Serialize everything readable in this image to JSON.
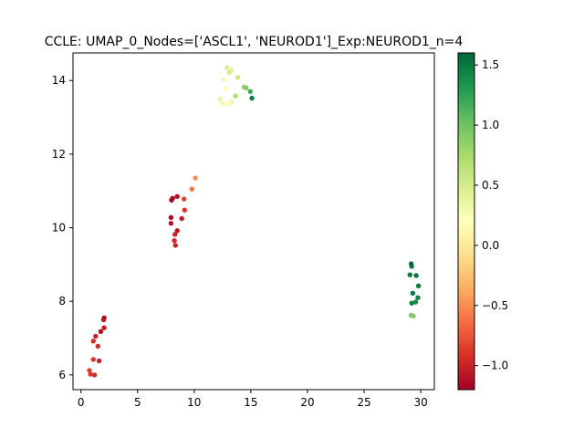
{
  "chart_data": {
    "type": "scatter",
    "title": "CCLE: UMAP_0_Nodes=['ASCL1', 'NEUROD1']_Exp:NEUROD1_n=4",
    "xlabel": "",
    "ylabel": "",
    "xlim": [
      -0.7,
      31.2
    ],
    "ylim": [
      5.6,
      14.75
    ],
    "xticks": [
      0,
      5,
      10,
      15,
      20,
      25,
      30
    ],
    "yticks": [
      6,
      8,
      10,
      12,
      14
    ],
    "grid": false,
    "colorbar": {
      "colormap": "RdYlGn",
      "range": [
        -1.2,
        1.6
      ],
      "ticks": [
        -1.0,
        -0.5,
        0.0,
        0.5,
        1.0,
        1.5
      ],
      "tick_labels": [
        "−1.0",
        "−0.5",
        "0.0",
        "0.5",
        "1.0",
        "1.5"
      ]
    },
    "points": [
      {
        "x": 12.9,
        "y": 14.35,
        "c": 0.45
      },
      {
        "x": 13.3,
        "y": 14.28,
        "c": 0.4
      },
      {
        "x": 13.1,
        "y": 14.22,
        "c": 0.5
      },
      {
        "x": 13.85,
        "y": 14.08,
        "c": 0.55
      },
      {
        "x": 12.6,
        "y": 14.02,
        "c": 0.3
      },
      {
        "x": 14.4,
        "y": 13.82,
        "c": 0.85
      },
      {
        "x": 14.6,
        "y": 13.8,
        "c": 0.9
      },
      {
        "x": 12.8,
        "y": 13.78,
        "c": 0.2
      },
      {
        "x": 14.95,
        "y": 13.7,
        "c": 1.2
      },
      {
        "x": 13.65,
        "y": 13.58,
        "c": 0.7
      },
      {
        "x": 15.1,
        "y": 13.52,
        "c": 1.5
      },
      {
        "x": 12.3,
        "y": 13.5,
        "c": 0.35
      },
      {
        "x": 13.3,
        "y": 13.42,
        "c": 0.3
      },
      {
        "x": 12.5,
        "y": 13.38,
        "c": 0.1
      },
      {
        "x": 12.95,
        "y": 13.35,
        "c": 0.15
      },
      {
        "x": 10.1,
        "y": 11.35,
        "c": -0.5
      },
      {
        "x": 9.8,
        "y": 11.05,
        "c": -0.6
      },
      {
        "x": 8.5,
        "y": 10.85,
        "c": -1.1
      },
      {
        "x": 8.1,
        "y": 10.8,
        "c": -1.15
      },
      {
        "x": 9.1,
        "y": 10.78,
        "c": -0.85
      },
      {
        "x": 8.0,
        "y": 10.75,
        "c": -1.2
      },
      {
        "x": 9.15,
        "y": 10.48,
        "c": -0.9
      },
      {
        "x": 7.95,
        "y": 10.28,
        "c": -1.15
      },
      {
        "x": 8.9,
        "y": 10.25,
        "c": -1.05
      },
      {
        "x": 7.95,
        "y": 10.12,
        "c": -1.1
      },
      {
        "x": 8.5,
        "y": 9.92,
        "c": -1.1
      },
      {
        "x": 8.3,
        "y": 9.82,
        "c": -1.0
      },
      {
        "x": 8.25,
        "y": 9.65,
        "c": -0.95
      },
      {
        "x": 8.35,
        "y": 9.52,
        "c": -1.0
      },
      {
        "x": 29.15,
        "y": 9.02,
        "c": 1.6
      },
      {
        "x": 29.2,
        "y": 8.95,
        "c": 1.55
      },
      {
        "x": 29.05,
        "y": 8.72,
        "c": 1.5
      },
      {
        "x": 29.6,
        "y": 8.7,
        "c": 1.55
      },
      {
        "x": 29.8,
        "y": 8.42,
        "c": 1.5
      },
      {
        "x": 29.3,
        "y": 8.22,
        "c": 1.5
      },
      {
        "x": 29.75,
        "y": 8.1,
        "c": 1.45
      },
      {
        "x": 29.55,
        "y": 7.98,
        "c": 1.4
      },
      {
        "x": 29.2,
        "y": 7.95,
        "c": 1.45
      },
      {
        "x": 29.15,
        "y": 7.62,
        "c": 0.95
      },
      {
        "x": 29.35,
        "y": 7.6,
        "c": 0.9
      },
      {
        "x": 2.05,
        "y": 7.55,
        "c": -1.15
      },
      {
        "x": 2.0,
        "y": 7.5,
        "c": -1.1
      },
      {
        "x": 2.05,
        "y": 7.28,
        "c": -1.05
      },
      {
        "x": 1.75,
        "y": 7.18,
        "c": -1.1
      },
      {
        "x": 1.3,
        "y": 7.05,
        "c": -1.0
      },
      {
        "x": 1.1,
        "y": 6.92,
        "c": -0.95
      },
      {
        "x": 1.5,
        "y": 6.78,
        "c": -0.95
      },
      {
        "x": 1.1,
        "y": 6.42,
        "c": -0.9
      },
      {
        "x": 1.6,
        "y": 6.38,
        "c": -1.0
      },
      {
        "x": 0.75,
        "y": 6.12,
        "c": -0.85
      },
      {
        "x": 0.85,
        "y": 6.02,
        "c": -0.9
      },
      {
        "x": 1.2,
        "y": 6.0,
        "c": -0.95
      }
    ]
  }
}
